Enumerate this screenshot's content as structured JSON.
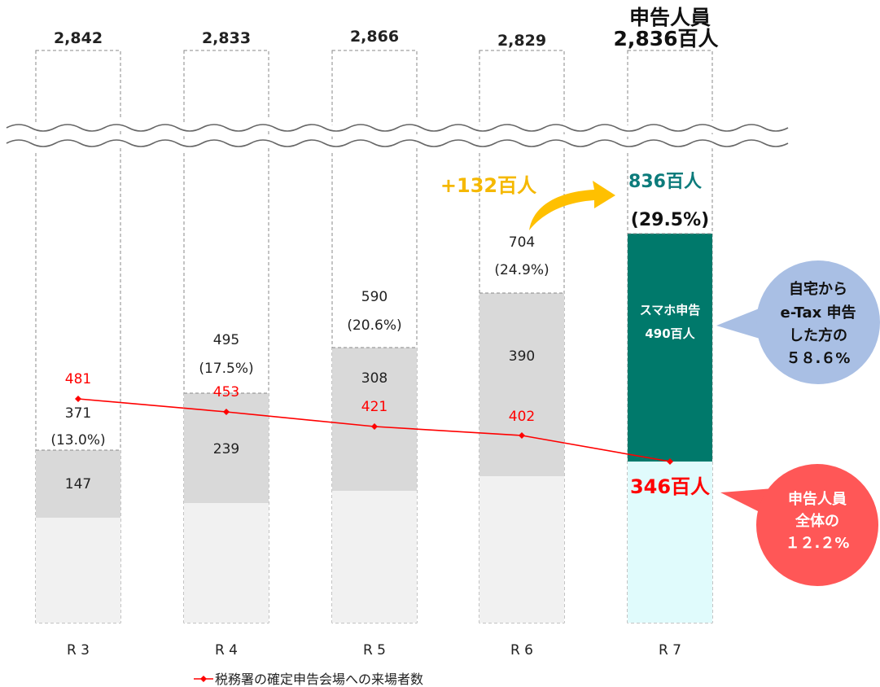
{
  "chart_data": {
    "type": "bar",
    "categories": [
      "R 3",
      "R 4",
      "R 5",
      "R 6",
      "R 7"
    ],
    "totals": [
      "2,842",
      "2,833",
      "2,866",
      "2,829",
      ""
    ],
    "total_label_r7": [
      "申告人員",
      "2,836百人"
    ],
    "series": [
      {
        "values": [
          147,
          239,
          308,
          390,
          490
        ],
        "labels": [
          "147",
          "239",
          "308",
          "390",
          ""
        ]
      },
      {
        "name": "税務署の確定申告会場への来場者数",
        "type": "line",
        "values": [
          481,
          453,
          421,
          402,
          346
        ]
      }
    ],
    "etax_home": {
      "values": [
        371,
        495,
        590,
        704,
        836
      ],
      "labels": [
        "371",
        "495",
        "590",
        "704",
        "836百人"
      ],
      "percents": [
        "(13.0%)",
        "(17.5%)",
        "(20.6%)",
        "(24.9%)",
        "(29.5%)"
      ]
    },
    "line_labels": [
      "481",
      "453",
      "421",
      "402",
      "346百人"
    ],
    "r7_bar_text": [
      "スマホ申告",
      "490百人"
    ],
    "increase_label": "+132百人",
    "legend": "税務署の確定申告会場への来場者数",
    "callout_blue": [
      "自宅から",
      "e-Tax 申告",
      "した方の",
      "５８.６%"
    ],
    "callout_red": [
      "申告人員",
      "全体の",
      "１２.２%"
    ],
    "colors": {
      "bar_light": "#f1f1f1",
      "bar_mid": "#d9d9d9",
      "r7_bar": "#00796b",
      "r7_light": "#e0fbfc",
      "line": "#ff0000",
      "teal_text": "#0c7b7b",
      "arrow": "#ffc000",
      "plus_text": "#f5b800",
      "callout_blue": "#a9bfe4",
      "callout_red": "#ff5757"
    }
  }
}
